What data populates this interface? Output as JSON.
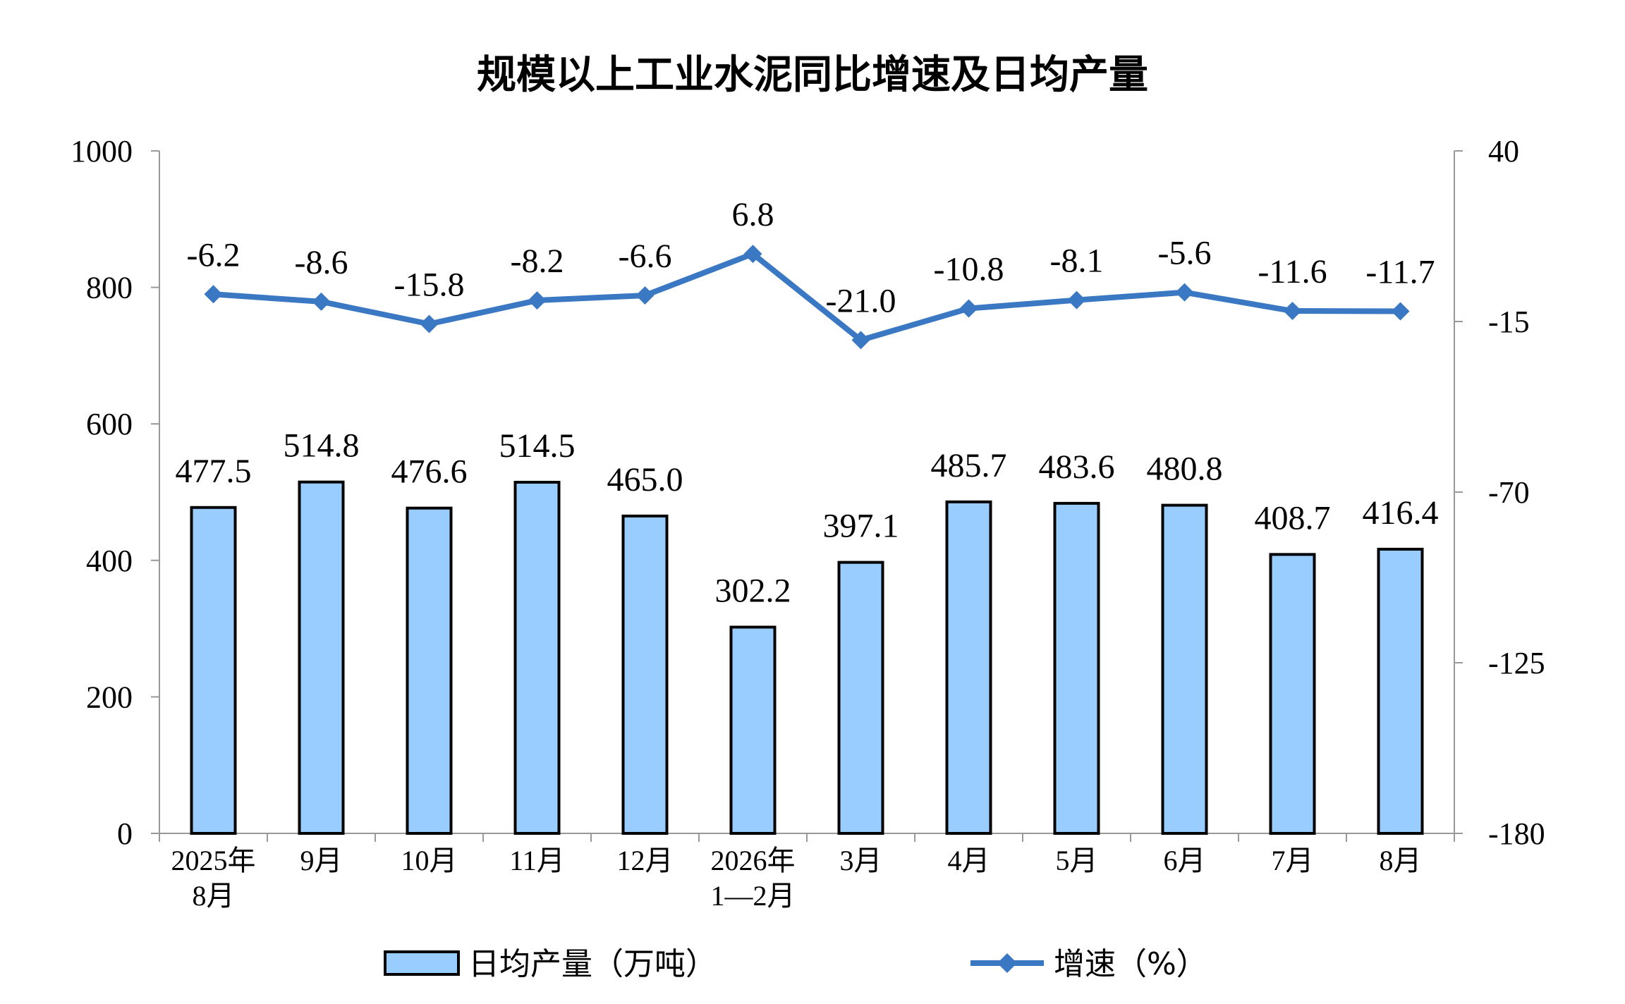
{
  "chart_data": {
    "type": "bar",
    "title": "规模以上工业水泥同比增速及日均产量",
    "categories": [
      [
        "2025年",
        "8月"
      ],
      [
        "9月"
      ],
      [
        "10月"
      ],
      [
        "11月"
      ],
      [
        "12月"
      ],
      [
        "2026年",
        "1—2月"
      ],
      [
        "3月"
      ],
      [
        "4月"
      ],
      [
        "5月"
      ],
      [
        "6月"
      ],
      [
        "7月"
      ],
      [
        "8月"
      ]
    ],
    "series": [
      {
        "name": "日均产量（万吨）",
        "type": "bar",
        "axis": "left",
        "values": [
          477.5,
          514.8,
          476.6,
          514.5,
          465.0,
          302.2,
          397.1,
          485.7,
          483.6,
          480.8,
          408.7,
          416.4
        ],
        "labels": [
          "477.5",
          "514.8",
          "476.6",
          "514.5",
          "465.0",
          "302.2",
          "397.1",
          "485.7",
          "483.6",
          "480.8",
          "408.7",
          "416.4"
        ]
      },
      {
        "name": "增速（%）",
        "type": "line",
        "axis": "right",
        "values": [
          -6.2,
          -8.6,
          -15.8,
          -8.2,
          -6.6,
          6.8,
          -21.0,
          -10.8,
          -8.1,
          -5.6,
          -11.6,
          -11.7
        ],
        "labels": [
          "-6.2",
          "-8.6",
          "-15.8",
          "-8.2",
          "-6.6",
          "6.8",
          "-21.0",
          "-10.8",
          "-8.1",
          "-5.6",
          "-11.6",
          "-11.7"
        ]
      }
    ],
    "y_left": {
      "lim": [
        0,
        1000
      ],
      "ticks": [
        "0",
        "200",
        "400",
        "600",
        "800",
        "1000"
      ]
    },
    "y_right": {
      "lim": [
        -180,
        40
      ],
      "ticks": [
        "-180",
        "-125",
        "-70",
        "-15",
        "40"
      ]
    },
    "grid": false,
    "legend_position": "bottom",
    "colors": {
      "bar_fill": "#99ccff",
      "bar_stroke": "#000000",
      "line": "#3a78c4",
      "axis": "#999999"
    }
  }
}
